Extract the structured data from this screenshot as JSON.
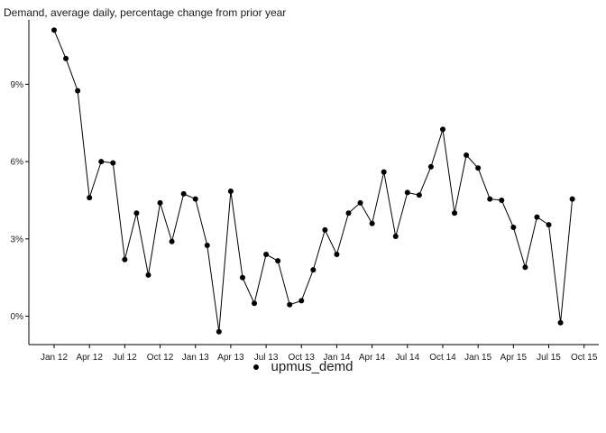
{
  "chart_data": {
    "type": "line",
    "title": "Demand, average daily, percentage change from prior year",
    "xlabel": "",
    "ylabel": "",
    "x_start": "2012-01",
    "x_frequency": "monthly",
    "x_tick_labels": [
      "Jan 12",
      "Apr 12",
      "Jul 12",
      "Oct 12",
      "Jan 13",
      "Apr 13",
      "Jul 13",
      "Oct 13",
      "Jan 14",
      "Apr 14",
      "Jul 14",
      "Oct 14",
      "Jan 15",
      "Apr 15",
      "Jul 15",
      "Oct 15"
    ],
    "y_ticks": [
      0,
      3,
      6,
      9
    ],
    "y_tick_labels": [
      "0%",
      "3%",
      "6%",
      "9%"
    ],
    "ylim": [
      -1.1,
      11.5
    ],
    "grid": false,
    "legend_position": "bottom",
    "series": [
      {
        "name": "upmus_demd",
        "color": "#000000",
        "values": [
          11.1,
          10.0,
          8.75,
          4.6,
          6.0,
          5.95,
          2.2,
          4.0,
          1.6,
          4.4,
          2.9,
          4.75,
          4.55,
          2.75,
          -0.6,
          4.85,
          1.5,
          0.5,
          2.4,
          2.15,
          0.45,
          0.6,
          1.8,
          3.35,
          2.4,
          4.0,
          4.4,
          3.6,
          5.6,
          3.1,
          4.8,
          4.7,
          5.8,
          7.25,
          4.0,
          6.25,
          5.75,
          4.55,
          4.5,
          3.45,
          1.9,
          3.85,
          3.55,
          -0.25,
          4.55
        ]
      }
    ]
  }
}
